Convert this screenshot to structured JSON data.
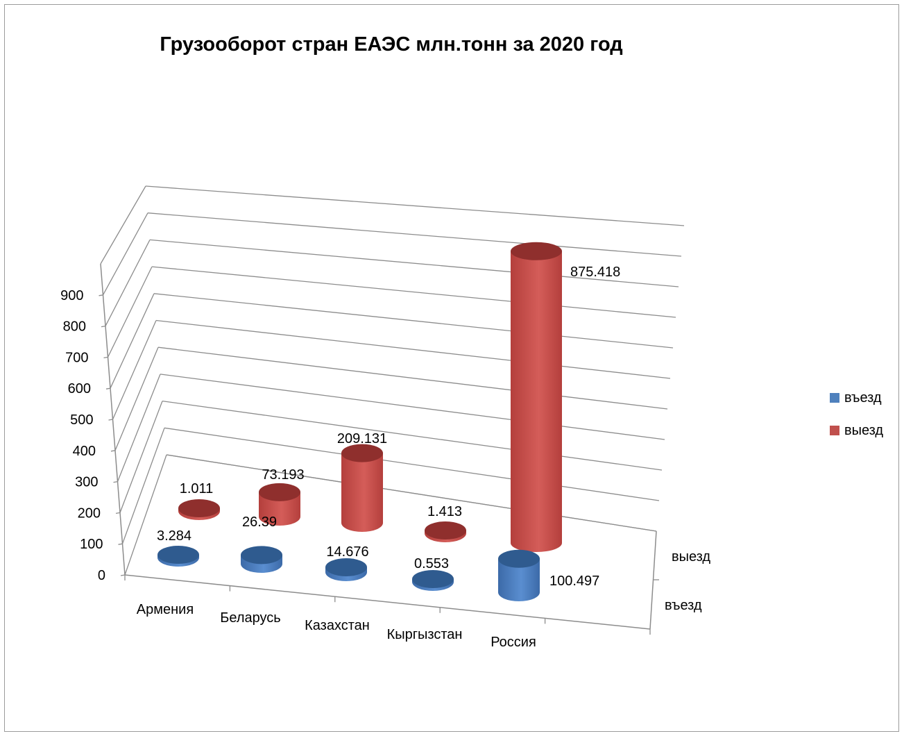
{
  "chart_data": {
    "type": "bar",
    "style": "3d-cylinder",
    "title": "Грузооборот стран ЕАЭС  млн.тонн за 2020 год",
    "categories": [
      "Армения",
      "Беларусь",
      "Казахстан",
      "Кыргызстан",
      "Россия"
    ],
    "series": [
      {
        "name": "въезд",
        "values": [
          3.284,
          26.39,
          14.676,
          0.553,
          100.497
        ],
        "color": "#4f81bd"
      },
      {
        "name": "выезд",
        "values": [
          1.011,
          73.193,
          209.131,
          1.413,
          875.418
        ],
        "color": "#c0504d"
      }
    ],
    "y_ticks": [
      "0",
      "100",
      "200",
      "300",
      "400",
      "500",
      "600",
      "700",
      "800",
      "900"
    ],
    "ylim": [
      0,
      1000
    ],
    "depth_labels": [
      "въезд",
      "выезд"
    ],
    "legend": "right",
    "grid": true
  }
}
